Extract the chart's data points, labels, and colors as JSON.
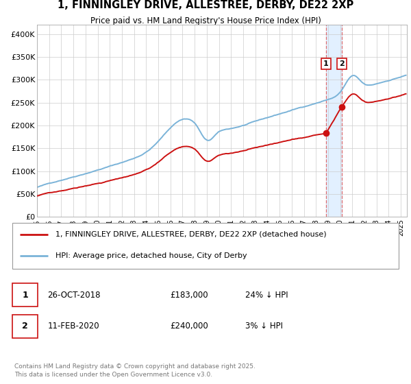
{
  "title": "1, FINNINGLEY DRIVE, ALLESTREE, DERBY, DE22 2XP",
  "subtitle": "Price paid vs. HM Land Registry's House Price Index (HPI)",
  "legend_line1": "1, FINNINGLEY DRIVE, ALLESTREE, DERBY, DE22 2XP (detached house)",
  "legend_line2": "HPI: Average price, detached house, City of Derby",
  "transaction1_date": "26-OCT-2018",
  "transaction1_price": "£183,000",
  "transaction1_hpi": "24% ↓ HPI",
  "transaction2_date": "11-FEB-2020",
  "transaction2_price": "£240,000",
  "transaction2_hpi": "3% ↓ HPI",
  "footnote": "Contains HM Land Registry data © Crown copyright and database right 2025.\nThis data is licensed under the Open Government Licence v3.0.",
  "hpi_color": "#7ab3d8",
  "price_color": "#cc1111",
  "marker_color": "#cc1111",
  "vline_color": "#e06060",
  "vband_color": "#ddeeff",
  "ylim": [
    0,
    420000
  ],
  "yticks": [
    0,
    50000,
    100000,
    150000,
    200000,
    250000,
    300000,
    350000,
    400000
  ],
  "transaction1_x": 2018.82,
  "transaction1_y": 183000,
  "transaction2_x": 2020.11,
  "transaction2_y": 240000,
  "background_color": "#ffffff",
  "grid_color": "#cccccc",
  "xlim_start": 1995,
  "xlim_end": 2025.5
}
